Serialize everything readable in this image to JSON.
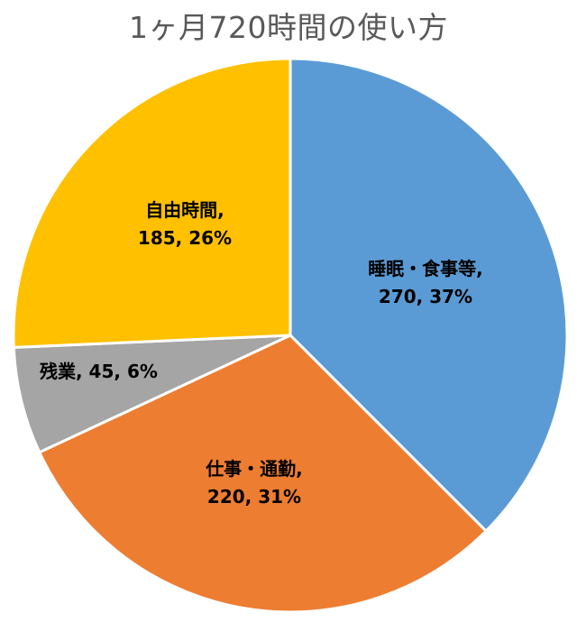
{
  "chart_data": {
    "type": "pie",
    "title": "1ヶ月720時間の使い方",
    "slices": [
      {
        "name": "睡眠・食事等",
        "value": 270,
        "percent": "37%",
        "color": "#5B9BD5",
        "label_line1": "睡眠・食事等,",
        "label_line2": "270, 37%"
      },
      {
        "name": "仕事・通勤",
        "value": 220,
        "percent": "31%",
        "color": "#ED7D31",
        "label_line1": "仕事・通勤,",
        "label_line2": "220, 31%"
      },
      {
        "name": "残業",
        "value": 45,
        "percent": "6%",
        "color": "#A5A5A5",
        "label_line1": "残業, 45, 6%",
        "label_line2": ""
      },
      {
        "name": "自由時間",
        "value": 185,
        "percent": "26%",
        "color": "#FFC000",
        "label_line1": "自由時間,",
        "label_line2": "185, 26%"
      }
    ]
  }
}
